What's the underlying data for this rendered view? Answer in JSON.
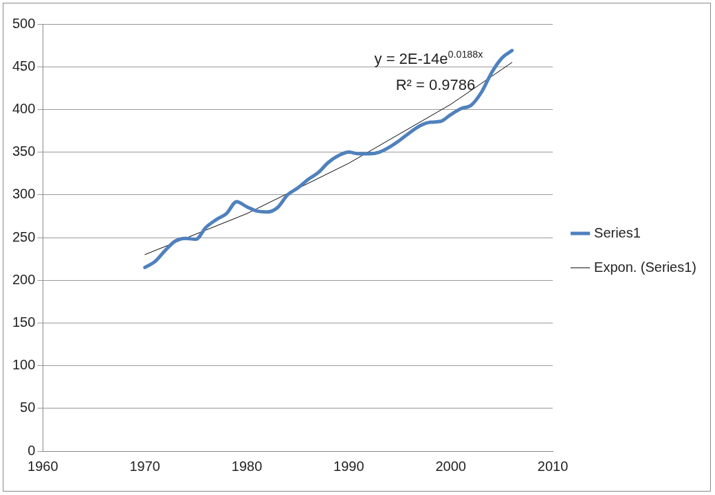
{
  "chart_data": {
    "type": "line",
    "x": [
      1970,
      1971,
      1972,
      1973,
      1974,
      1975,
      1976,
      1977,
      1978,
      1979,
      1980,
      1981,
      1982,
      1983,
      1984,
      1985,
      1986,
      1987,
      1988,
      1989,
      1990,
      1991,
      1992,
      1993,
      1994,
      1995,
      1996,
      1997,
      1998,
      1999,
      2000,
      2001,
      2002,
      2003,
      2004,
      2005,
      2006
    ],
    "series": [
      {
        "name": "Series1",
        "color": "#4f81bd",
        "values": [
          215,
          222,
          235,
          246,
          249,
          248,
          262,
          271,
          278,
          292,
          286,
          281,
          280,
          285,
          300,
          308,
          318,
          326,
          338,
          346,
          350,
          348,
          348,
          350,
          356,
          364,
          373,
          381,
          385,
          386,
          394,
          401,
          405,
          420,
          443,
          460,
          469
        ]
      },
      {
        "name": "Expon. (Series1)",
        "type": "line",
        "color": "#000000",
        "x": [
          1970,
          1980,
          1990,
          2000,
          2006
        ],
        "values": [
          230,
          278,
          337,
          406,
          455
        ]
      }
    ],
    "xlim": [
      1960,
      2010
    ],
    "xticks": [
      1960,
      1970,
      1980,
      1990,
      2000,
      2010
    ],
    "ylim": [
      0,
      500
    ],
    "yticks": [
      0,
      50,
      100,
      150,
      200,
      250,
      300,
      350,
      400,
      450,
      500
    ],
    "grid": "y",
    "legend": "right",
    "marker": "none",
    "line_style": "solid",
    "annotations": [
      "y = 2E-14e$^{0.0188x}$",
      "R² = 0.9786"
    ]
  }
}
